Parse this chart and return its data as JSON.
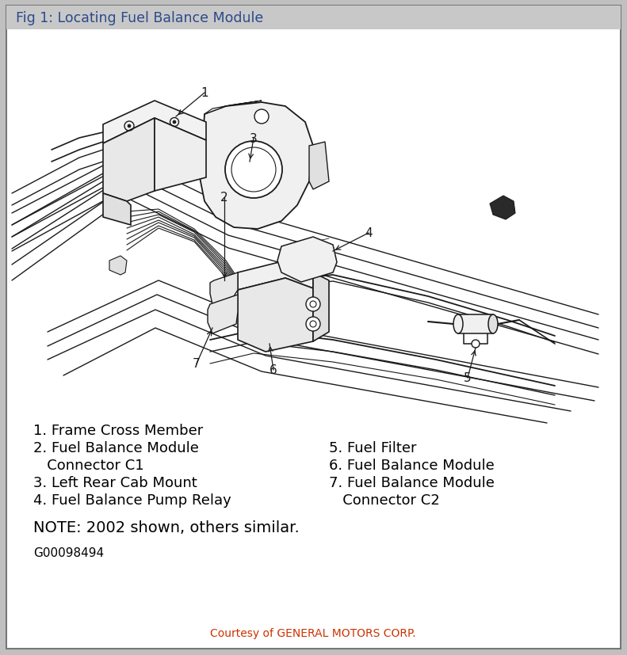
{
  "title": "Fig 1: Locating Fuel Balance Module",
  "title_color": "#2B4A8B",
  "title_bg_color": "#C8C8C8",
  "bg_color": "#FFFFFF",
  "border_color": "#777777",
  "legend_left_line1": "1. Frame Cross Member",
  "legend_left_line2": "2. Fuel Balance Module",
  "legend_left_line3": "   Connector C1",
  "legend_left_line4": "3. Left Rear Cab Mount",
  "legend_left_line5": "4. Fuel Balance Pump Relay",
  "legend_right_line1": "5. Fuel Filter",
  "legend_right_line2": "6. Fuel Balance Module",
  "legend_right_line3": "7. Fuel Balance Module",
  "legend_right_line4": "   Connector C2",
  "note": "NOTE: 2002 shown, others similar.",
  "code": "G00098494",
  "courtesy": "Courtesy of GENERAL MOTORS CORP.",
  "courtesy_color_general": "#CC3300",
  "courtesy_color_rest": "#CC3300",
  "line_color": "#1A1A1A",
  "fig_width": 7.91,
  "fig_height": 8.28,
  "dpi": 100
}
